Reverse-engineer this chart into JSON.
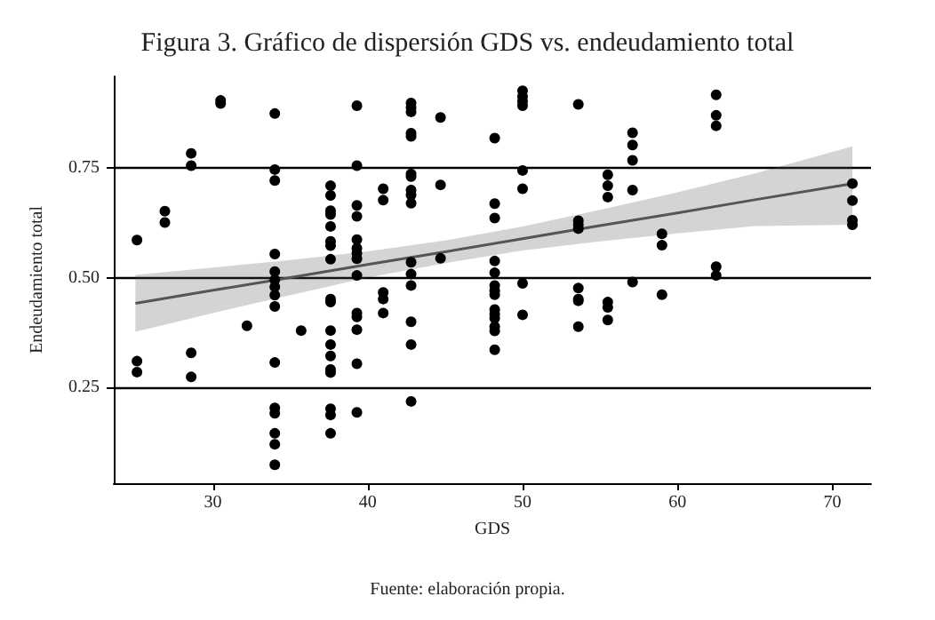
{
  "chart_data": {
    "type": "scatter",
    "title": "Figura 3. Gráfico de dispersión GDS vs. endeudamiento total",
    "xlabel": "GDS",
    "ylabel": "Endeudamiento total",
    "annotations": [
      "Fuente: elaboración propia."
    ],
    "xlim": [
      23.6,
      72.5
    ],
    "ylim": [
      0.03,
      0.96
    ],
    "xticks": [
      30,
      40,
      50,
      60,
      70
    ],
    "yticks": [
      {
        "value": 0.25,
        "label": "0.25"
      },
      {
        "value": 0.5,
        "label": "0.50"
      },
      {
        "value": 0.75,
        "label": "0.75"
      }
    ],
    "grid": "y",
    "marker": "circle",
    "series": [
      {
        "color": "#000000",
        "x": [
          25.1,
          25.1,
          25.1,
          26.9,
          26.9,
          28.6,
          28.6,
          28.6,
          28.6,
          30.5,
          30.5,
          32.2,
          34.0,
          34.0,
          34.0,
          34.0,
          34.0,
          34.0,
          34.0,
          34.0,
          34.0,
          34.0,
          34.0,
          34.0,
          34.0,
          34.0,
          34.0,
          35.7,
          37.6,
          37.6,
          37.6,
          37.6,
          37.6,
          37.6,
          37.6,
          37.6,
          37.6,
          37.6,
          37.6,
          37.6,
          37.6,
          37.6,
          37.6,
          37.6,
          37.6,
          37.6,
          39.3,
          39.3,
          39.3,
          39.3,
          39.3,
          39.3,
          39.3,
          39.3,
          39.3,
          39.3,
          39.3,
          39.3,
          39.3,
          39.3,
          41.0,
          41.0,
          41.0,
          41.0,
          41.0,
          42.8,
          42.8,
          42.8,
          42.8,
          42.8,
          42.8,
          42.8,
          42.8,
          42.8,
          42.8,
          42.8,
          42.8,
          42.8,
          42.8,
          42.8,
          42.8,
          44.7,
          44.7,
          44.7,
          48.2,
          48.2,
          48.2,
          48.2,
          48.2,
          48.2,
          48.2,
          48.2,
          48.2,
          48.2,
          48.2,
          48.2,
          48.2,
          48.2,
          50.0,
          50.0,
          50.0,
          50.0,
          50.0,
          50.0,
          50.0,
          50.0,
          53.6,
          53.6,
          53.6,
          53.6,
          53.6,
          53.6,
          53.6,
          53.6,
          55.5,
          55.5,
          55.5,
          55.5,
          55.5,
          55.5,
          57.1,
          57.1,
          57.1,
          57.1,
          57.1,
          59.0,
          59.0,
          59.0,
          62.5,
          62.5,
          62.5,
          62.5,
          62.5,
          71.3,
          71.3,
          71.3,
          71.3
        ],
        "values": [
          0.586,
          0.309,
          0.284,
          0.652,
          0.626,
          0.784,
          0.756,
          0.328,
          0.273,
          0.905,
          0.898,
          0.39,
          0.875,
          0.747,
          0.722,
          0.554,
          0.514,
          0.495,
          0.479,
          0.46,
          0.434,
          0.306,
          0.202,
          0.19,
          0.144,
          0.119,
          0.072,
          0.379,
          0.71,
          0.688,
          0.653,
          0.644,
          0.617,
          0.583,
          0.573,
          0.542,
          0.451,
          0.444,
          0.379,
          0.347,
          0.321,
          0.29,
          0.283,
          0.2,
          0.186,
          0.144,
          0.893,
          0.756,
          0.665,
          0.64,
          0.587,
          0.567,
          0.556,
          0.543,
          0.505,
          0.419,
          0.41,
          0.381,
          0.303,
          0.192,
          0.703,
          0.677,
          0.466,
          0.451,
          0.419,
          0.899,
          0.889,
          0.879,
          0.83,
          0.823,
          0.737,
          0.731,
          0.7,
          0.689,
          0.67,
          0.535,
          0.508,
          0.482,
          0.399,
          0.347,
          0.217,
          0.866,
          0.712,
          0.544,
          0.819,
          0.669,
          0.636,
          0.538,
          0.511,
          0.482,
          0.47,
          0.461,
          0.427,
          0.417,
          0.407,
          0.388,
          0.378,
          0.335,
          0.927,
          0.914,
          0.903,
          0.893,
          0.745,
          0.703,
          0.487,
          0.415,
          0.896,
          0.63,
          0.621,
          0.612,
          0.476,
          0.451,
          0.447,
          0.388,
          0.735,
          0.71,
          0.684,
          0.444,
          0.432,
          0.403,
          0.831,
          0.803,
          0.768,
          0.7,
          0.49,
          0.6,
          0.574,
          0.461,
          0.918,
          0.871,
          0.847,
          0.525,
          0.505,
          0.715,
          0.676,
          0.631,
          0.621
        ]
      },
      {
        "type": "line",
        "color": "#555555",
        "marker": "none",
        "x": [
          25,
          30,
          35,
          40,
          45,
          50,
          55,
          60,
          65,
          71.3
        ],
        "values": [
          0.441,
          0.471,
          0.5,
          0.53,
          0.559,
          0.589,
          0.619,
          0.648,
          0.678,
          0.715
        ],
        "lower": [
          0.376,
          0.419,
          0.46,
          0.5,
          0.533,
          0.562,
          0.583,
          0.601,
          0.618,
          0.621
        ],
        "upper": [
          0.506,
          0.523,
          0.54,
          0.56,
          0.585,
          0.617,
          0.655,
          0.695,
          0.738,
          0.8
        ]
      }
    ]
  }
}
